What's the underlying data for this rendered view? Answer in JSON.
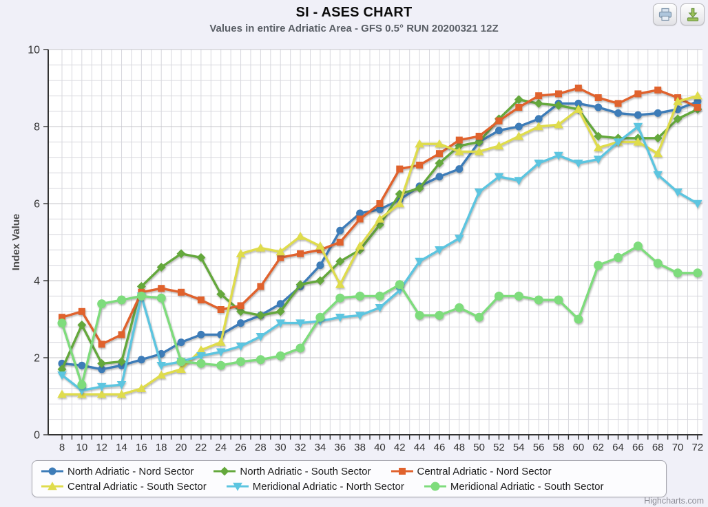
{
  "title": "SI - ASES CHART",
  "subtitle": "Values in entire Adriatic Area - GFS 0.5° RUN 20200321 12Z",
  "credit": "Highcharts.com",
  "toolbar": {
    "buttons": [
      {
        "id": "print",
        "icon": "printer-icon"
      },
      {
        "id": "download",
        "icon": "download-icon"
      }
    ]
  },
  "colors": {
    "page_bg": "#F0F0F8",
    "plot_bg": "#FFFFFF",
    "grid_minor": "#D7D7DD",
    "grid_major": "#C4C4CA",
    "axis": "#333333",
    "tick_label": "#333333",
    "axis_title": "#4a4a4a",
    "legend_border": "#A5A5AD",
    "credit_color": "#8D8D96"
  },
  "chart_data": {
    "type": "line",
    "title": "SI - ASES CHART",
    "subtitle": "Values in entire Adriatic Area - GFS 0.5° RUN 20200321 12Z",
    "xlabel": "",
    "ylabel": "Index Value",
    "xlim": [
      8,
      72
    ],
    "ylim": [
      0,
      10
    ],
    "x_tick_step": 2,
    "x_minor_tick_step": 1,
    "y_tick_step": 2,
    "y_minor_grid_step": 0.4,
    "grid": true,
    "legend_position": "bottom",
    "x": [
      8,
      10,
      12,
      14,
      16,
      18,
      20,
      22,
      24,
      26,
      28,
      30,
      32,
      34,
      36,
      38,
      40,
      42,
      44,
      46,
      48,
      50,
      52,
      54,
      56,
      58,
      60,
      62,
      64,
      66,
      68,
      70,
      72
    ],
    "y_ticks": [
      0,
      2,
      4,
      6,
      8,
      10
    ],
    "series": [
      {
        "name": "North Adriatic - Nord Sector",
        "color": "#3D7CB8",
        "marker": "circle",
        "values": [
          1.85,
          1.8,
          1.7,
          1.8,
          1.95,
          2.1,
          2.4,
          2.6,
          2.6,
          2.9,
          3.1,
          3.4,
          3.85,
          4.4,
          5.3,
          5.75,
          5.85,
          6.1,
          6.45,
          6.7,
          6.9,
          7.6,
          7.9,
          8.0,
          8.2,
          8.6,
          8.6,
          8.5,
          8.35,
          8.3,
          8.35,
          8.45,
          8.65
        ]
      },
      {
        "name": "North Adriatic - South Sector",
        "color": "#64A83C",
        "marker": "diamond",
        "values": [
          1.7,
          2.85,
          1.85,
          1.9,
          3.85,
          4.35,
          4.7,
          4.6,
          3.65,
          3.2,
          3.1,
          3.2,
          3.9,
          4.0,
          4.5,
          4.8,
          5.45,
          6.25,
          6.4,
          7.05,
          7.5,
          7.6,
          8.2,
          8.7,
          8.6,
          8.55,
          8.45,
          7.75,
          7.7,
          7.7,
          7.7,
          8.2,
          8.45
        ]
      },
      {
        "name": "Central Adriatic - Nord Sector",
        "color": "#E0622D",
        "marker": "square",
        "values": [
          3.05,
          3.2,
          2.35,
          2.6,
          3.7,
          3.8,
          3.7,
          3.5,
          3.25,
          3.35,
          3.85,
          4.6,
          4.7,
          4.8,
          5.0,
          5.6,
          6.0,
          6.9,
          7.0,
          7.3,
          7.65,
          7.75,
          8.15,
          8.5,
          8.8,
          8.85,
          9.0,
          8.75,
          8.6,
          8.85,
          8.95,
          8.75,
          8.5
        ]
      },
      {
        "name": "Central Adriatic - South Sector",
        "color": "#DFDC4C",
        "marker": "triangle-up",
        "values": [
          1.05,
          1.05,
          1.05,
          1.05,
          1.2,
          1.55,
          1.7,
          2.2,
          2.4,
          4.7,
          4.85,
          4.75,
          5.15,
          4.9,
          3.9,
          4.9,
          5.6,
          6.0,
          7.55,
          7.55,
          7.35,
          7.35,
          7.5,
          7.75,
          8.0,
          8.05,
          8.45,
          7.45,
          7.6,
          7.6,
          7.3,
          8.65,
          8.8
        ]
      },
      {
        "name": "Meridional Adriatic - North Sector",
        "color": "#5CC5E0",
        "marker": "triangle-down",
        "values": [
          1.55,
          1.15,
          1.25,
          1.3,
          3.6,
          1.8,
          1.9,
          2.05,
          2.15,
          2.3,
          2.55,
          2.9,
          2.9,
          2.95,
          3.05,
          3.1,
          3.3,
          3.75,
          4.5,
          4.8,
          5.1,
          6.3,
          6.7,
          6.6,
          7.05,
          7.25,
          7.05,
          7.15,
          7.6,
          8.0,
          6.75,
          6.3,
          6.0
        ]
      },
      {
        "name": "Meridional Adriatic - South Sector",
        "color": "#7EDC7C",
        "marker": "circle-large",
        "values": [
          2.9,
          1.3,
          3.4,
          3.5,
          3.6,
          3.55,
          1.9,
          1.85,
          1.8,
          1.9,
          1.95,
          2.05,
          2.25,
          3.05,
          3.55,
          3.6,
          3.6,
          3.9,
          3.1,
          3.1,
          3.3,
          3.05,
          3.6,
          3.6,
          3.5,
          3.5,
          3.0,
          4.4,
          4.6,
          4.9,
          4.45,
          4.2,
          4.2
        ]
      }
    ]
  }
}
